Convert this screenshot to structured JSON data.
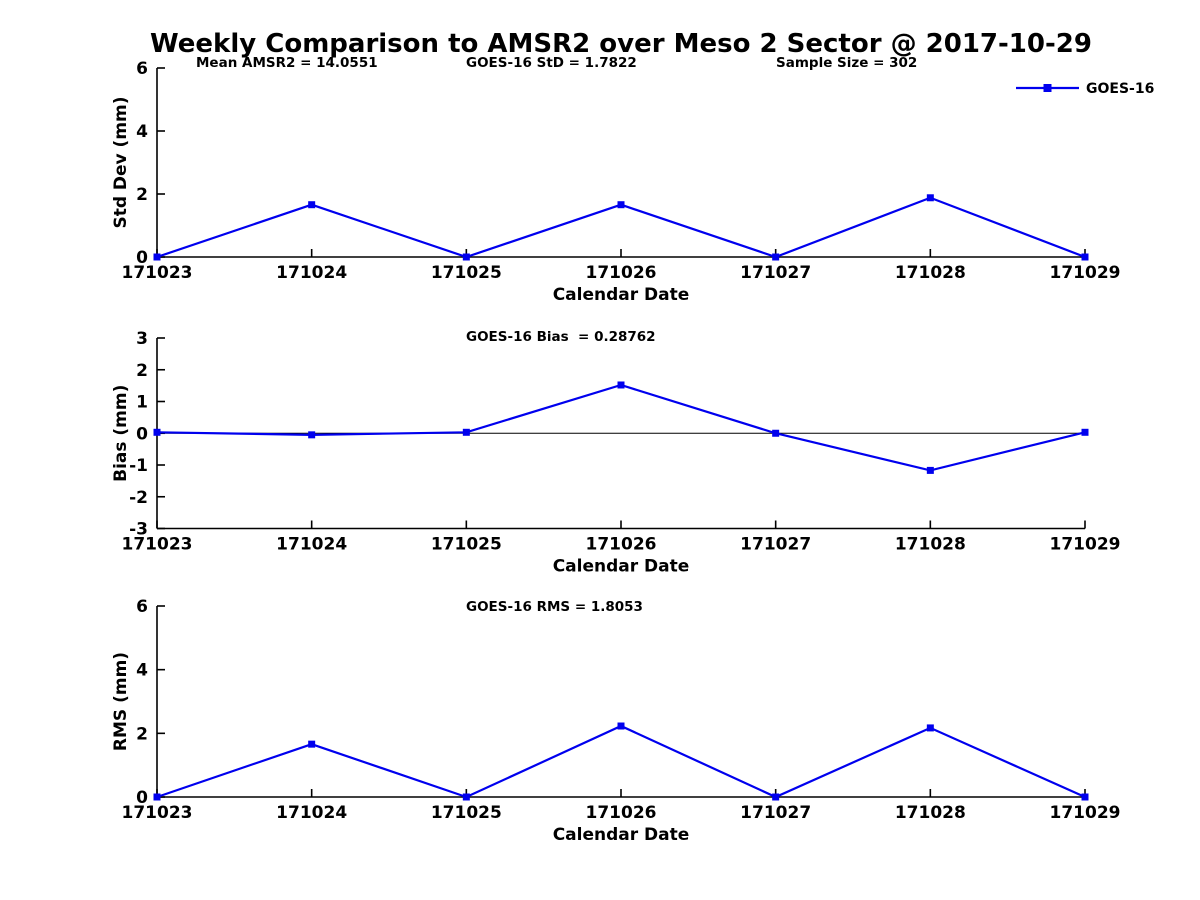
{
  "title": "Weekly Comparison to AMSR2 over Meso 2 Sector @ 2017-10-29",
  "legend": {
    "label": "GOES-16"
  },
  "colors": {
    "series": "#0000EE",
    "axis": "#000000",
    "text": "#000000"
  },
  "stats": {
    "mean_amsr2": 14.0551,
    "goes16_std": 1.7822,
    "sample_size": 302,
    "goes16_bias": 0.28762,
    "goes16_rms": 1.8053
  },
  "chart_data": [
    {
      "type": "line",
      "title": "",
      "categories": [
        "171023",
        "171024",
        "171025",
        "171026",
        "171027",
        "171028",
        "171029"
      ],
      "series": [
        {
          "name": "GOES-16",
          "values": [
            0,
            1.66,
            0,
            1.66,
            0,
            1.88,
            0
          ]
        }
      ],
      "annotations": [
        "Mean AMSR2 = 14.0551",
        "GOES-16 StD = 1.7822",
        "Sample Size = 302"
      ],
      "xlabel": "Calendar Date",
      "ylabel": "Std Dev (mm)",
      "ylim": [
        0,
        6
      ],
      "yticks": [
        0,
        2,
        4,
        6
      ],
      "grid": false,
      "zero_line": false,
      "legend": true,
      "legend_position": "top-right"
    },
    {
      "type": "line",
      "title": "",
      "categories": [
        "171023",
        "171024",
        "171025",
        "171026",
        "171027",
        "171028",
        "171029"
      ],
      "series": [
        {
          "name": "GOES-16",
          "values": [
            0.03,
            -0.05,
            0.03,
            1.52,
            0,
            -1.17,
            0.03
          ]
        }
      ],
      "annotations": [
        "GOES-16 Bias  = 0.28762"
      ],
      "xlabel": "Calendar Date",
      "ylabel": "Bias (mm)",
      "ylim": [
        -3,
        3
      ],
      "yticks": [
        -3,
        -2,
        -1,
        0,
        1,
        2,
        3
      ],
      "grid": false,
      "zero_line": true,
      "legend": false
    },
    {
      "type": "line",
      "title": "",
      "categories": [
        "171023",
        "171024",
        "171025",
        "171026",
        "171027",
        "171028",
        "171029"
      ],
      "series": [
        {
          "name": "GOES-16",
          "values": [
            0,
            1.66,
            0,
            2.23,
            0,
            2.17,
            0
          ]
        }
      ],
      "annotations": [
        "GOES-16 RMS = 1.8053"
      ],
      "xlabel": "Calendar Date",
      "ylabel": "RMS (mm)",
      "ylim": [
        0,
        6
      ],
      "yticks": [
        0,
        2,
        4,
        6
      ],
      "grid": false,
      "zero_line": false,
      "legend": false
    }
  ]
}
